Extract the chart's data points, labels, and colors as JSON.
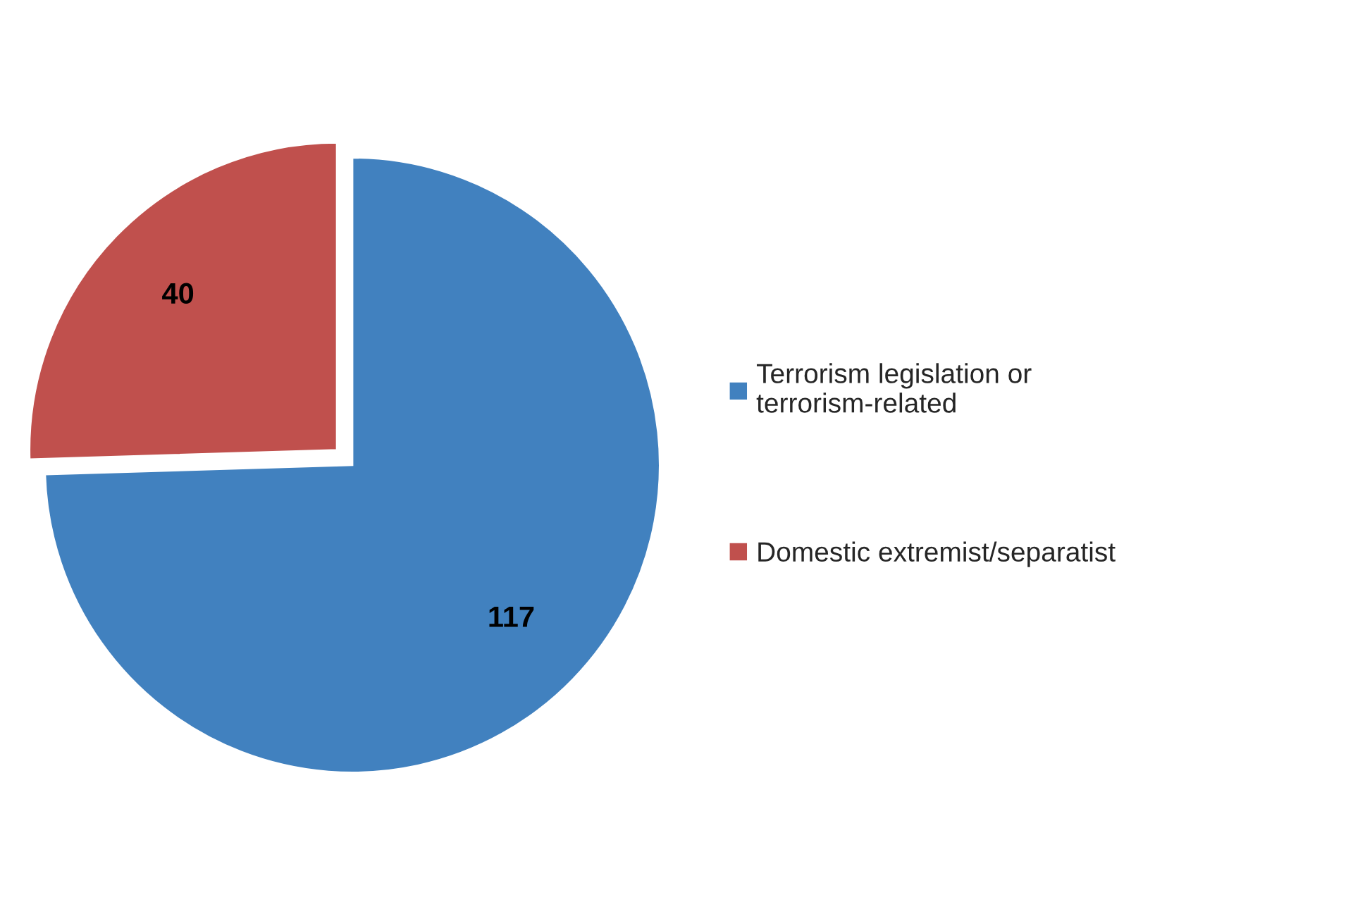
{
  "chart_data": {
    "type": "pie",
    "categories": [
      "Terrorism legislation or terrorism-related",
      "Domestic extremist/separatist"
    ],
    "values": [
      117,
      40
    ],
    "colors": [
      "#4181bf",
      "#c0504d"
    ],
    "data_labels": true,
    "legend": "right"
  }
}
